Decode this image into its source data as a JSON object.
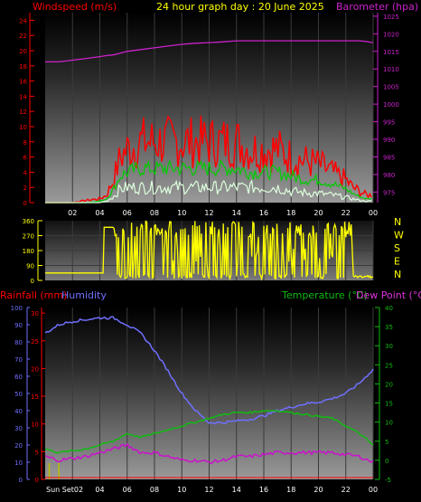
{
  "header": {
    "windspeed_label": "Windspeed (m/s)",
    "title": "24 hour graph day : 20 June 2025",
    "barometer_label": "Barometer (hpa)"
  },
  "colors": {
    "wind_gust": "#ff0000",
    "wind_avg": "#00cc00",
    "wind_min": "#ddffdd",
    "barometer": "#cc22cc",
    "direction": "#ffff00",
    "humidity": "#6f6fff",
    "temperature": "#11bb11",
    "dewpoint": "#cc11cc",
    "rainfall": "#ff0000",
    "sunset": "#bbbb00"
  },
  "time_ticks": [
    "02",
    "04",
    "06",
    "08",
    "10",
    "12",
    "14",
    "16",
    "18",
    "20",
    "22",
    "00"
  ],
  "bottom_time_ticks": [
    "Sun Set02",
    "04",
    "06",
    "08",
    "10",
    "12",
    "14",
    "16",
    "18",
    "20",
    "22",
    "00"
  ],
  "chart_data": [
    {
      "type": "line",
      "name": "wind-and-barometer",
      "ylabel_left": "Windspeed (m/s)",
      "ylabel_right": "Barometer (hpa)",
      "yticks_left": [
        "0",
        "2",
        "4",
        "6",
        "8",
        "10",
        "12",
        "14",
        "16",
        "18",
        "20",
        "22",
        "24"
      ],
      "yticks_right": [
        "975",
        "980",
        "985",
        "990",
        "995",
        "1000",
        "1005",
        "1010",
        "1015",
        "1020",
        "1025"
      ],
      "ylim_left": [
        0,
        25
      ],
      "ylim_right": [
        972,
        1026
      ],
      "x": [
        0,
        1,
        2,
        3,
        4,
        4.5,
        5,
        5.5,
        6,
        7,
        8,
        9,
        10,
        11,
        12,
        13,
        14,
        15,
        16,
        17,
        18,
        19,
        20,
        21,
        22,
        22.5,
        23,
        23.5,
        24
      ],
      "series": [
        {
          "key": "gust",
          "values": [
            0,
            0,
            0,
            0.3,
            0.5,
            1,
            3,
            6,
            7,
            8,
            8,
            8,
            8,
            8,
            8,
            8,
            8,
            7,
            7,
            7,
            6,
            5.5,
            5,
            4,
            3,
            2,
            1.5,
            1,
            1
          ]
        },
        {
          "key": "average",
          "values": [
            0,
            0,
            0,
            0,
            0.2,
            0.5,
            1.8,
            3.5,
            4,
            4.5,
            4.5,
            4.5,
            4.5,
            4.5,
            4.5,
            4.5,
            4.5,
            4,
            4,
            4,
            3.5,
            3,
            3,
            2.5,
            1.8,
            1.2,
            0.8,
            0.5,
            0.5
          ]
        },
        {
          "key": "lull",
          "values": [
            0,
            0,
            0,
            0,
            0,
            0.2,
            0.8,
            1.8,
            2,
            2,
            2,
            2,
            2,
            2,
            2,
            2,
            2,
            2,
            2,
            2,
            1.5,
            1.3,
            1.2,
            1,
            0.7,
            0.5,
            0.3,
            0.2,
            0.2
          ]
        },
        {
          "key": "barometer",
          "values": [
            1012,
            1012,
            1012.5,
            1013,
            1013.5,
            1013.8,
            1014,
            1014.5,
            1015,
            1015.5,
            1016,
            1016.5,
            1017,
            1017.3,
            1017.5,
            1017.7,
            1018,
            1018,
            1018,
            1018,
            1018,
            1018,
            1018,
            1018,
            1018,
            1018,
            1018,
            1017.8,
            1017.5
          ]
        }
      ]
    },
    {
      "type": "scatter",
      "name": "wind-direction",
      "yticks": [
        "0",
        "90",
        "180",
        "270",
        "360"
      ],
      "ylim": [
        0,
        360
      ],
      "compass": [
        "N",
        "W",
        "S",
        "E",
        "N"
      ],
      "x": [
        0,
        1,
        2,
        3,
        4,
        4.5,
        5,
        5.5,
        6,
        7,
        8,
        9,
        10,
        11,
        12,
        13,
        14,
        15,
        16,
        17,
        18,
        19,
        20,
        21,
        22,
        23,
        24
      ],
      "values": [
        45,
        45,
        45,
        45,
        45,
        320,
        20,
        250,
        300,
        20,
        300,
        30,
        320,
        10,
        300,
        40,
        280,
        300,
        20,
        300,
        330,
        40,
        300,
        20,
        10,
        20,
        20
      ]
    },
    {
      "type": "line",
      "name": "rain-humidity-temperature",
      "ylabel_left_1": "Rainfall (mm)",
      "ylabel_left_2": "Humidity",
      "ylabel_right_1": "Temperature (°C)",
      "ylabel_right_2": "Dew Point (°C)",
      "yticks_humidity": [
        "0",
        "10",
        "20",
        "30",
        "40",
        "50",
        "60",
        "70",
        "80",
        "90",
        "100"
      ],
      "yticks_rain": [
        "0",
        "5",
        "10",
        "15",
        "20",
        "25",
        "30"
      ],
      "yticks_temp": [
        "-5",
        "0",
        "5",
        "10",
        "15",
        "20",
        "25",
        "30",
        "35",
        "40"
      ],
      "ylim_humidity": [
        0,
        100
      ],
      "ylim_temp": [
        -5,
        40
      ],
      "x": [
        0,
        1,
        2,
        3,
        4,
        5,
        6,
        7,
        8,
        9,
        10,
        11,
        12,
        13,
        14,
        15,
        16,
        17,
        18,
        19,
        20,
        21,
        22,
        23,
        24
      ],
      "series": [
        {
          "key": "humidity",
          "values": [
            85,
            90,
            92,
            93,
            94,
            94,
            90,
            85,
            75,
            63,
            50,
            40,
            33,
            33,
            34,
            35,
            37,
            40,
            42,
            44,
            45,
            47,
            50,
            56,
            64
          ]
        },
        {
          "key": "temperature",
          "values": [
            3,
            2,
            2.5,
            3,
            4,
            5,
            7,
            6,
            7,
            8,
            9,
            10,
            11,
            12,
            12.5,
            12.5,
            13,
            13,
            12.5,
            12,
            11.5,
            11,
            9,
            7,
            4
          ]
        },
        {
          "key": "dewpoint",
          "values": [
            1,
            0,
            0.5,
            1,
            2,
            3,
            4,
            2,
            2,
            1,
            0,
            0,
            -0.5,
            0,
            1,
            1,
            1.5,
            2,
            2,
            2,
            2,
            2,
            1.5,
            1,
            -0.5
          ]
        },
        {
          "key": "rainfall",
          "values": [
            0,
            0,
            0,
            0,
            0,
            0,
            0,
            0,
            0,
            0,
            0,
            0,
            0,
            0,
            0,
            0,
            0,
            0,
            0,
            0,
            0,
            0,
            0,
            0,
            0
          ]
        }
      ],
      "sunset_markers_hours": [
        0.3,
        1.0
      ]
    }
  ]
}
